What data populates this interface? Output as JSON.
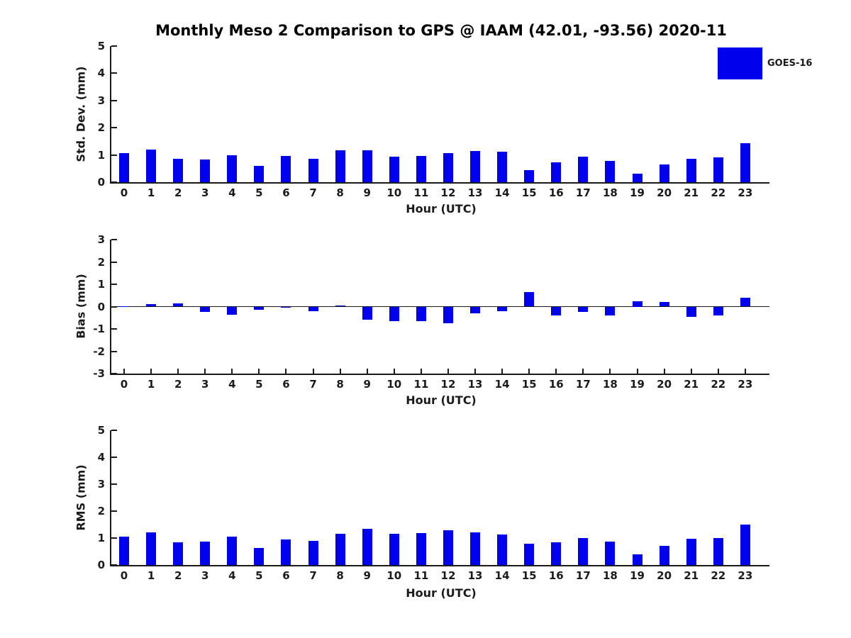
{
  "title": "Monthly Meso 2 Comparison to GPS @ IAAM (42.01, -93.56) 2020-11",
  "legend": {
    "label": "GOES-16",
    "color": "#0000EE"
  },
  "accent_color": "#0000EE",
  "chart_data": [
    {
      "type": "bar",
      "title": "Std. Dev. subplot",
      "ylabel": "Std. Dev. (mm)",
      "xlabel": "Hour (UTC)",
      "ylim": [
        0,
        5
      ],
      "yticks": [
        0,
        1,
        2,
        3,
        4,
        5
      ],
      "grid": false,
      "legend_position": "upper right",
      "categories": [
        "0",
        "1",
        "2",
        "3",
        "4",
        "5",
        "6",
        "7",
        "8",
        "9",
        "10",
        "11",
        "12",
        "13",
        "14",
        "15",
        "16",
        "17",
        "18",
        "19",
        "20",
        "21",
        "22",
        "23"
      ],
      "series": [
        {
          "name": "GOES-16",
          "color": "#0000EE",
          "values": [
            1.08,
            1.2,
            0.85,
            0.83,
            1.0,
            0.6,
            0.97,
            0.87,
            1.18,
            1.18,
            0.93,
            0.97,
            1.08,
            1.15,
            1.12,
            0.45,
            0.73,
            0.94,
            0.79,
            0.3,
            0.65,
            0.85,
            0.9,
            1.43
          ]
        }
      ]
    },
    {
      "type": "bar",
      "title": "Bias subplot",
      "ylabel": "Bias (mm)",
      "xlabel": "Hour (UTC)",
      "ylim": [
        -3,
        3
      ],
      "yticks": [
        -3,
        -2,
        -1,
        0,
        1,
        2,
        3
      ],
      "zero_line": true,
      "grid": false,
      "categories": [
        "0",
        "1",
        "2",
        "3",
        "4",
        "5",
        "6",
        "7",
        "8",
        "9",
        "10",
        "11",
        "12",
        "13",
        "14",
        "15",
        "16",
        "17",
        "18",
        "19",
        "20",
        "21",
        "22",
        "23"
      ],
      "series": [
        {
          "name": "GOES-16",
          "color": "#0000EE",
          "values": [
            0.02,
            0.1,
            0.15,
            -0.25,
            -0.38,
            -0.15,
            -0.03,
            -0.22,
            0.05,
            -0.6,
            -0.65,
            -0.65,
            -0.75,
            -0.3,
            -0.2,
            0.65,
            -0.4,
            -0.25,
            -0.4,
            0.25,
            0.2,
            -0.45,
            -0.4,
            0.4
          ]
        }
      ]
    },
    {
      "type": "bar",
      "title": "RMS subplot",
      "ylabel": "RMS (mm)",
      "xlabel": "Hour (UTC)",
      "ylim": [
        0,
        5
      ],
      "yticks": [
        0,
        1,
        2,
        3,
        4,
        5
      ],
      "grid": false,
      "categories": [
        "0",
        "1",
        "2",
        "3",
        "4",
        "5",
        "6",
        "7",
        "8",
        "9",
        "10",
        "11",
        "12",
        "13",
        "14",
        "15",
        "16",
        "17",
        "18",
        "19",
        "20",
        "21",
        "22",
        "23"
      ],
      "series": [
        {
          "name": "GOES-16",
          "color": "#0000EE",
          "values": [
            1.05,
            1.2,
            0.85,
            0.88,
            1.05,
            0.62,
            0.95,
            0.9,
            1.17,
            1.34,
            1.15,
            1.18,
            1.3,
            1.2,
            1.13,
            0.8,
            0.85,
            1.0,
            0.88,
            0.4,
            0.7,
            0.97,
            1.0,
            1.5
          ]
        }
      ]
    }
  ]
}
